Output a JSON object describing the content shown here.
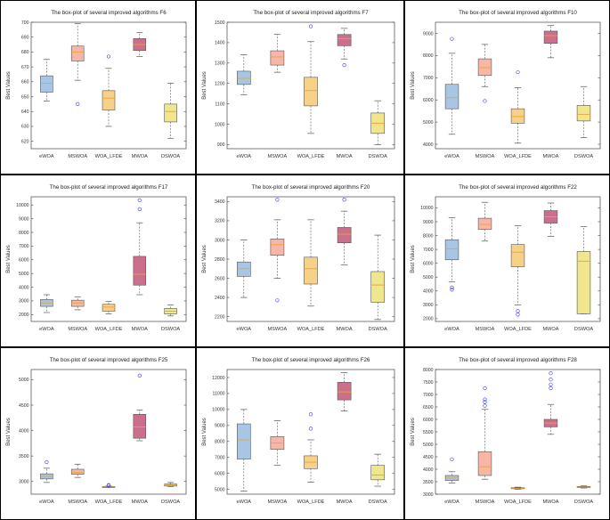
{
  "chart_data": [
    {
      "type": "box",
      "title": "The box-plot of several improved algorithms F6",
      "ylabel": "Best Values",
      "categories": [
        "eWOA",
        "MSWOA",
        "WOA_LFDE",
        "MWOA",
        "DSWOA"
      ],
      "ylim": [
        615,
        700
      ],
      "yticks": [
        620,
        630,
        640,
        650,
        660,
        670,
        680,
        690,
        700
      ],
      "boxes": [
        {
          "whislo": 647,
          "q1": 653,
          "med": 659,
          "q3": 664,
          "whishi": 675,
          "fliers": []
        },
        {
          "whislo": 661,
          "q1": 674,
          "med": 680,
          "q3": 684,
          "whishi": 699,
          "fliers": [
            645
          ]
        },
        {
          "whislo": 630,
          "q1": 641,
          "med": 649,
          "q3": 654,
          "whishi": 669,
          "fliers": [
            677
          ]
        },
        {
          "whislo": 677,
          "q1": 681,
          "med": 685,
          "q3": 689,
          "whishi": 693,
          "fliers": []
        },
        {
          "whislo": 622,
          "q1": 633,
          "med": 640,
          "q3": 645,
          "whishi": 659,
          "fliers": []
        }
      ]
    },
    {
      "type": "box",
      "title": "The box-plot of several improved algorithms F7",
      "ylabel": "Best Values",
      "categories": [
        "eWOA",
        "MSWOA",
        "WOA_LFDE",
        "MWOA",
        "DSWOA"
      ],
      "ylim": [
        880,
        1500
      ],
      "yticks": [
        900,
        1000,
        1100,
        1200,
        1300,
        1400,
        1500
      ],
      "boxes": [
        {
          "whislo": 1145,
          "q1": 1195,
          "med": 1225,
          "q3": 1260,
          "whishi": 1340,
          "fliers": []
        },
        {
          "whislo": 1255,
          "q1": 1290,
          "med": 1330,
          "q3": 1360,
          "whishi": 1440,
          "fliers": []
        },
        {
          "whislo": 955,
          "q1": 1090,
          "med": 1165,
          "q3": 1230,
          "whishi": 1405,
          "fliers": [
            1480
          ]
        },
        {
          "whislo": 1320,
          "q1": 1385,
          "med": 1420,
          "q3": 1440,
          "whishi": 1470,
          "fliers": [
            1290
          ]
        },
        {
          "whislo": 900,
          "q1": 955,
          "med": 1005,
          "q3": 1055,
          "whishi": 1115,
          "fliers": []
        }
      ]
    },
    {
      "type": "box",
      "title": "The box-plot of several improved algorithms F10",
      "ylabel": "Best Values",
      "categories": [
        "eWOA",
        "MSWOA",
        "WOA_LFDE",
        "MWOA",
        "DSWOA"
      ],
      "ylim": [
        3800,
        9500
      ],
      "yticks": [
        4000,
        5000,
        6000,
        7000,
        8000,
        9000
      ],
      "boxes": [
        {
          "whislo": 4450,
          "q1": 5600,
          "med": 6100,
          "q3": 6700,
          "whishi": 8100,
          "fliers": [
            8750
          ]
        },
        {
          "whislo": 6600,
          "q1": 7100,
          "med": 7450,
          "q3": 7850,
          "whishi": 8500,
          "fliers": [
            5950
          ]
        },
        {
          "whislo": 4050,
          "q1": 4950,
          "med": 5250,
          "q3": 5600,
          "whishi": 6550,
          "fliers": [
            7250
          ]
        },
        {
          "whislo": 7900,
          "q1": 8550,
          "med": 8900,
          "q3": 9100,
          "whishi": 9350,
          "fliers": []
        },
        {
          "whislo": 4300,
          "q1": 5050,
          "med": 5350,
          "q3": 5750,
          "whishi": 6600,
          "fliers": []
        }
      ]
    },
    {
      "type": "box",
      "title": "The box-plot of several improved algorithms F17",
      "ylabel": "Best Values",
      "categories": [
        "eWOA",
        "MSWOA",
        "WOA_LFDE",
        "MWOA",
        "DSWOA"
      ],
      "ylim": [
        1500,
        10600
      ],
      "yticks": [
        2000,
        3000,
        4000,
        5000,
        6000,
        7000,
        8000,
        9000,
        10000
      ],
      "boxes": [
        {
          "whislo": 2150,
          "q1": 2600,
          "med": 2850,
          "q3": 3100,
          "whishi": 3450,
          "fliers": []
        },
        {
          "whislo": 2350,
          "q1": 2600,
          "med": 2850,
          "q3": 3050,
          "whishi": 3300,
          "fliers": []
        },
        {
          "whislo": 2050,
          "q1": 2250,
          "med": 2550,
          "q3": 2750,
          "whishi": 2950,
          "fliers": []
        },
        {
          "whislo": 3450,
          "q1": 4150,
          "med": 4950,
          "q3": 6250,
          "whishi": 8700,
          "fliers": [
            9700,
            10350
          ]
        },
        {
          "whislo": 1900,
          "q1": 2050,
          "med": 2250,
          "q3": 2450,
          "whishi": 2700,
          "fliers": []
        }
      ]
    },
    {
      "type": "box",
      "title": "The box-plot of several improved algorithms F20",
      "ylabel": "Best Values",
      "categories": [
        "eWOA",
        "MSWOA",
        "WOA_LFDE",
        "MWOA",
        "DSWOA"
      ],
      "ylim": [
        2150,
        3450
      ],
      "yticks": [
        2200,
        2400,
        2600,
        2800,
        3000,
        3200,
        3400
      ],
      "boxes": [
        {
          "whislo": 2400,
          "q1": 2620,
          "med": 2700,
          "q3": 2770,
          "whishi": 3000,
          "fliers": []
        },
        {
          "whislo": 2600,
          "q1": 2840,
          "med": 2950,
          "q3": 3010,
          "whishi": 3210,
          "fliers": [
            2370,
            3420
          ]
        },
        {
          "whislo": 2310,
          "q1": 2540,
          "med": 2700,
          "q3": 2820,
          "whishi": 3210,
          "fliers": []
        },
        {
          "whislo": 2740,
          "q1": 2970,
          "med": 3060,
          "q3": 3130,
          "whishi": 3300,
          "fliers": [
            3420
          ]
        },
        {
          "whislo": 2170,
          "q1": 2350,
          "med": 2530,
          "q3": 2670,
          "whishi": 3050,
          "fliers": []
        }
      ]
    },
    {
      "type": "box",
      "title": "The box-plot of several improved algorithms F22",
      "ylabel": "Best Values",
      "categories": [
        "eWOA",
        "MSWOA",
        "WOA_LFDE",
        "MWOA",
        "DSWOA"
      ],
      "ylim": [
        1800,
        10800
      ],
      "yticks": [
        2000,
        3000,
        4000,
        5000,
        6000,
        7000,
        8000,
        9000,
        10000
      ],
      "boxes": [
        {
          "whislo": 4650,
          "q1": 6250,
          "med": 7050,
          "q3": 7700,
          "whishi": 9300,
          "fliers": [
            4100,
            4250
          ]
        },
        {
          "whislo": 7600,
          "q1": 8450,
          "med": 8800,
          "q3": 9250,
          "whishi": 10400,
          "fliers": []
        },
        {
          "whislo": 3000,
          "q1": 5750,
          "med": 6800,
          "q3": 7350,
          "whishi": 8700,
          "fliers": [
            2300,
            2550
          ]
        },
        {
          "whislo": 7950,
          "q1": 8900,
          "med": 9350,
          "q3": 9800,
          "whishi": 10350,
          "fliers": []
        },
        {
          "whislo": 2350,
          "q1": 2350,
          "med": 6150,
          "q3": 6850,
          "whishi": 8650,
          "fliers": []
        }
      ]
    },
    {
      "type": "box",
      "title": "The box-plot of several improved algorithms F25",
      "ylabel": "Best Values",
      "categories": [
        "eWOA",
        "MSWOA",
        "WOA_LFDE",
        "MWOA",
        "DSWOA"
      ],
      "ylim": [
        2750,
        5200
      ],
      "yticks": [
        3000,
        3500,
        4000,
        4500,
        5000
      ],
      "boxes": [
        {
          "whislo": 2980,
          "q1": 3050,
          "med": 3100,
          "q3": 3150,
          "whishi": 3260,
          "fliers": [
            3380
          ]
        },
        {
          "whislo": 3080,
          "q1": 3140,
          "med": 3180,
          "q3": 3240,
          "whishi": 3340,
          "fliers": []
        },
        {
          "whislo": 2880,
          "q1": 2885,
          "med": 2890,
          "q3": 2900,
          "whishi": 2910,
          "fliers": [
            2920,
            2930
          ]
        },
        {
          "whislo": 3800,
          "q1": 3850,
          "med": 4070,
          "q3": 4320,
          "whishi": 4400,
          "fliers": [
            5080
          ]
        },
        {
          "whislo": 2900,
          "q1": 2910,
          "med": 2930,
          "q3": 2950,
          "whishi": 2980,
          "fliers": []
        }
      ]
    },
    {
      "type": "box",
      "title": "The box-plot of several improved algorithms F26",
      "ylabel": "Best Values",
      "categories": [
        "eWOA",
        "MSWOA",
        "WOA_LFDE",
        "MWOA",
        "DSWOA"
      ],
      "ylim": [
        4700,
        12500
      ],
      "yticks": [
        5000,
        6000,
        7000,
        8000,
        9000,
        10000,
        11000,
        12000
      ],
      "boxes": [
        {
          "whislo": 4900,
          "q1": 6900,
          "med": 8100,
          "q3": 9100,
          "whishi": 10000,
          "fliers": []
        },
        {
          "whislo": 6500,
          "q1": 7500,
          "med": 7900,
          "q3": 8300,
          "whishi": 9300,
          "fliers": []
        },
        {
          "whislo": 5450,
          "q1": 6300,
          "med": 6700,
          "q3": 7100,
          "whishi": 8100,
          "fliers": [
            8800,
            9700
          ]
        },
        {
          "whislo": 9900,
          "q1": 10600,
          "med": 11100,
          "q3": 11700,
          "whishi": 12300,
          "fliers": []
        },
        {
          "whislo": 5200,
          "q1": 5600,
          "med": 5900,
          "q3": 6500,
          "whishi": 7200,
          "fliers": []
        }
      ]
    },
    {
      "type": "box",
      "title": "The box-plot of several improved algorithms F28",
      "ylabel": "Best Values",
      "categories": [
        "eWOA",
        "MSWOA",
        "WOA_LFDE",
        "MWOA",
        "DSWOA"
      ],
      "ylim": [
        3000,
        8000
      ],
      "yticks": [
        3000,
        3500,
        4000,
        4500,
        5000,
        5500,
        6000,
        6500,
        7000,
        7500,
        8000
      ],
      "boxes": [
        {
          "whislo": 3450,
          "q1": 3550,
          "med": 3650,
          "q3": 3750,
          "whishi": 3900,
          "fliers": [
            4400
          ]
        },
        {
          "whislo": 3600,
          "q1": 3750,
          "med": 4100,
          "q3": 4700,
          "whishi": 6400,
          "fliers": [
            6550,
            6700,
            6800,
            7250
          ]
        },
        {
          "whislo": 3200,
          "q1": 3220,
          "med": 3240,
          "q3": 3260,
          "whishi": 3280,
          "fliers": []
        },
        {
          "whislo": 5400,
          "q1": 5700,
          "med": 5850,
          "q3": 6000,
          "whishi": 6600,
          "fliers": [
            7250,
            7400,
            7600,
            7850
          ]
        },
        {
          "whislo": 3250,
          "q1": 3270,
          "med": 3290,
          "q3": 3310,
          "whishi": 3330,
          "fliers": []
        }
      ]
    }
  ],
  "colors": [
    "#a8c6e4",
    "#f7b7a8",
    "#f8d189",
    "#cc6f8d",
    "#f0e68c"
  ],
  "median_color": "#e8a33a",
  "outlier_color": "#3b3bff"
}
